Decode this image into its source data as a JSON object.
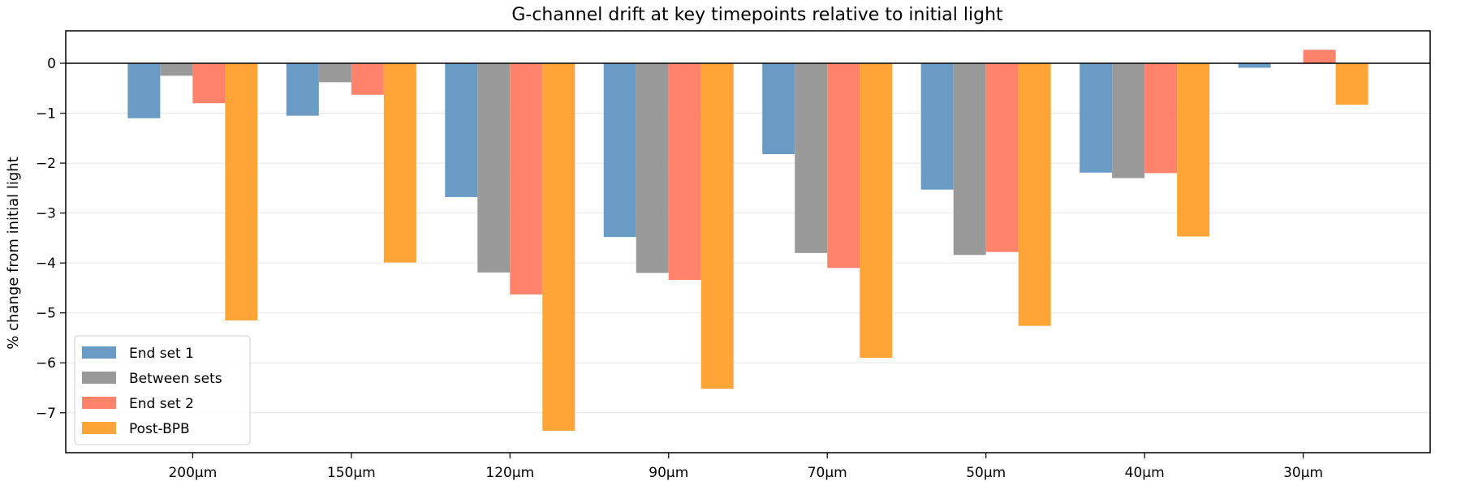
{
  "chart_data": {
    "type": "bar",
    "title": "G-channel drift at key timepoints relative to initial light",
    "xlabel": "",
    "ylabel": "% change from initial light",
    "categories": [
      "200µm",
      "150µm",
      "120µm",
      "90µm",
      "70µm",
      "50µm",
      "40µm",
      "30µm"
    ],
    "ylim": [
      -7.8,
      0.65
    ],
    "yticks": [
      0,
      -1,
      -2,
      -3,
      -4,
      -5,
      -6,
      -7
    ],
    "ytick_labels": [
      "0",
      "−1",
      "−2",
      "−3",
      "−4",
      "−5",
      "−6",
      "−7"
    ],
    "grid": "horizontal",
    "legend_position": "lower-left",
    "series": [
      {
        "name": "End set 1",
        "color": "#6a9bc4",
        "values": [
          -1.1,
          -1.05,
          -2.68,
          -3.48,
          -1.82,
          -2.53,
          -2.19,
          -0.09
        ]
      },
      {
        "name": "Between sets",
        "color": "#999999",
        "values": [
          -0.25,
          -0.38,
          -4.19,
          -4.2,
          -3.8,
          -3.84,
          -2.3,
          0
        ]
      },
      {
        "name": "End set 2",
        "color": "#ff836b",
        "values": [
          -0.8,
          -0.63,
          -4.63,
          -4.34,
          -4.1,
          -3.78,
          -2.2,
          0.27
        ]
      },
      {
        "name": "Post-BPB",
        "color": "#ffa436",
        "values": [
          -5.15,
          -3.99,
          -7.36,
          -6.52,
          -5.9,
          -5.26,
          -3.47,
          -0.83
        ]
      }
    ]
  }
}
